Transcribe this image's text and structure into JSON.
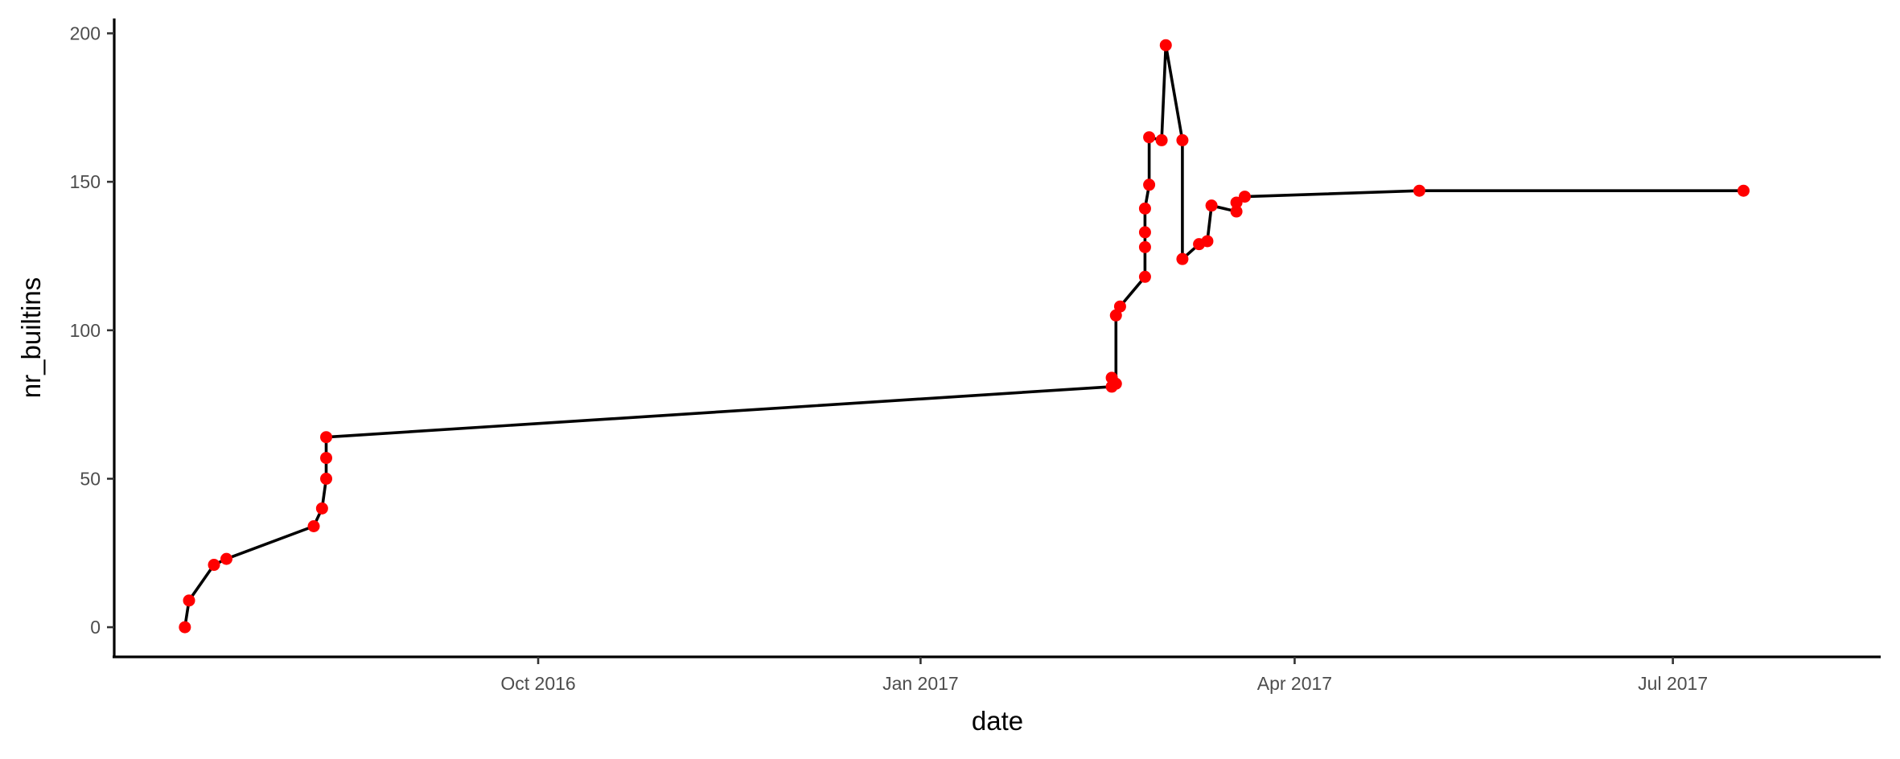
{
  "chart_data": {
    "type": "line",
    "xlabel": "date",
    "ylabel": "nr_builtins",
    "x_ticks": [
      {
        "date": "2016-10-01",
        "label": "Oct 2016"
      },
      {
        "date": "2017-01-01",
        "label": "Jan 2017"
      },
      {
        "date": "2017-04-01",
        "label": "Apr 2017"
      },
      {
        "date": "2017-07-01",
        "label": "Jul 2017"
      }
    ],
    "y_ticks": [
      0,
      50,
      100,
      150,
      200
    ],
    "xlim": [
      "2016-06-21",
      "2017-08-20"
    ],
    "ylim": [
      -10,
      205
    ],
    "grid": false,
    "line_color": "#000000",
    "point_color": "#ff0000",
    "series": [
      {
        "points": [
          {
            "x": "2016-07-08",
            "y": 0
          },
          {
            "x": "2016-07-09",
            "y": 9
          },
          {
            "x": "2016-07-15",
            "y": 21
          },
          {
            "x": "2016-07-18",
            "y": 23
          },
          {
            "x": "2016-08-08",
            "y": 34
          },
          {
            "x": "2016-08-10",
            "y": 40
          },
          {
            "x": "2016-08-11",
            "y": 50
          },
          {
            "x": "2016-08-11",
            "y": 57
          },
          {
            "x": "2016-08-11",
            "y": 64
          },
          {
            "x": "2017-02-16",
            "y": 81
          },
          {
            "x": "2017-02-16",
            "y": 84
          },
          {
            "x": "2017-02-17",
            "y": 82
          },
          {
            "x": "2017-02-17",
            "y": 105
          },
          {
            "x": "2017-02-18",
            "y": 108
          },
          {
            "x": "2017-02-24",
            "y": 118
          },
          {
            "x": "2017-02-24",
            "y": 128
          },
          {
            "x": "2017-02-24",
            "y": 133
          },
          {
            "x": "2017-02-24",
            "y": 141
          },
          {
            "x": "2017-02-25",
            "y": 149
          },
          {
            "x": "2017-02-25",
            "y": 165
          },
          {
            "x": "2017-02-28",
            "y": 164
          },
          {
            "x": "2017-03-01",
            "y": 196
          },
          {
            "x": "2017-03-05",
            "y": 164
          },
          {
            "x": "2017-03-05",
            "y": 124
          },
          {
            "x": "2017-03-09",
            "y": 129
          },
          {
            "x": "2017-03-11",
            "y": 130
          },
          {
            "x": "2017-03-12",
            "y": 142
          },
          {
            "x": "2017-03-18",
            "y": 140
          },
          {
            "x": "2017-03-18",
            "y": 143
          },
          {
            "x": "2017-03-20",
            "y": 145
          },
          {
            "x": "2017-05-01",
            "y": 147
          },
          {
            "x": "2017-07-18",
            "y": 147
          }
        ]
      }
    ]
  }
}
